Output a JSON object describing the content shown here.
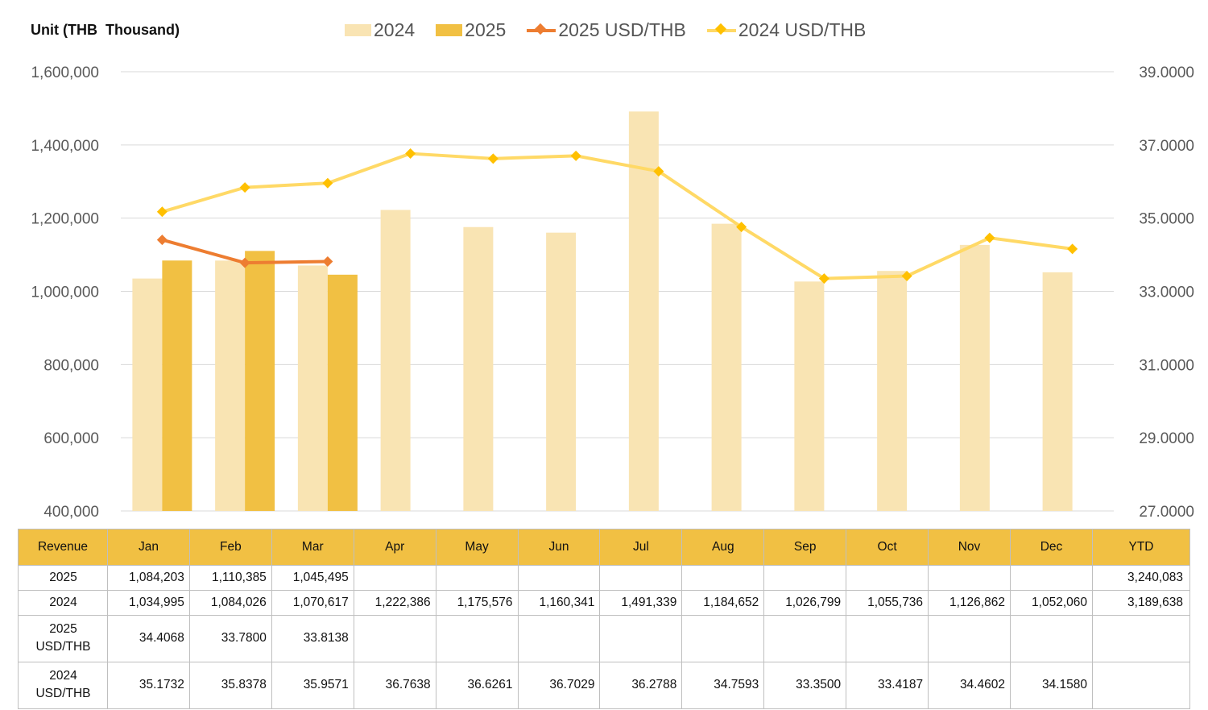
{
  "unit_label": "Unit (THB  Thousand)",
  "legend": [
    {
      "label": "2024",
      "kind": "bar",
      "color": "#f9e4b3"
    },
    {
      "label": "2025",
      "kind": "bar",
      "color": "#f1c043"
    },
    {
      "label": "2025 USD/THB",
      "kind": "line",
      "color": "#ed7d31"
    },
    {
      "label": "2024 USD/THB",
      "kind": "line",
      "color": "#ffd966",
      "marker_color": "#ffc000"
    }
  ],
  "chart_data": {
    "type": "bar",
    "title": "",
    "categories": [
      "Jan",
      "Feb",
      "Mar",
      "Apr",
      "May",
      "Jun",
      "Jul",
      "Aug",
      "Sep",
      "Oct",
      "Nov",
      "Dec"
    ],
    "series": [
      {
        "name": "2024",
        "type": "bar",
        "axis": "left",
        "color": "#f9e4b3",
        "values": [
          1034995,
          1084026,
          1070617,
          1222386,
          1175576,
          1160341,
          1491339,
          1184652,
          1026799,
          1055736,
          1126862,
          1052060
        ]
      },
      {
        "name": "2025",
        "type": "bar",
        "axis": "left",
        "color": "#f1c043",
        "values": [
          1084203,
          1110385,
          1045495,
          null,
          null,
          null,
          null,
          null,
          null,
          null,
          null,
          null
        ]
      },
      {
        "name": "2025 USD/THB",
        "type": "line",
        "axis": "right",
        "color": "#ed7d31",
        "values": [
          34.4068,
          33.78,
          33.8138,
          null,
          null,
          null,
          null,
          null,
          null,
          null,
          null,
          null
        ]
      },
      {
        "name": "2024 USD/THB",
        "type": "line",
        "axis": "right",
        "color": "#ffd966",
        "values": [
          35.1732,
          35.8378,
          35.9571,
          36.7638,
          36.6261,
          36.7029,
          36.2788,
          34.7593,
          33.35,
          33.4187,
          34.4602,
          34.158
        ]
      }
    ],
    "y_left": {
      "min": 400000,
      "max": 1600000,
      "step": 200000,
      "ticks": [
        "400,000",
        "600,000",
        "800,000",
        "1,000,000",
        "1,200,000",
        "1,400,000",
        "1,600,000"
      ]
    },
    "y_right": {
      "min": 27,
      "max": 39,
      "step": 2,
      "ticks": [
        "27.0000",
        "29.0000",
        "31.0000",
        "33.0000",
        "35.0000",
        "37.0000",
        "39.0000"
      ]
    },
    "grid": true,
    "legend_position": "top"
  },
  "table": {
    "header": [
      "Revenue",
      "Jan",
      "Feb",
      "Mar",
      "Apr",
      "May",
      "Jun",
      "Jul",
      "Aug",
      "Sep",
      "Oct",
      "Nov",
      "Dec",
      "YTD"
    ],
    "rows": [
      {
        "label": [
          "2025"
        ],
        "cells": [
          "1,084,203",
          "1,110,385",
          "1,045,495",
          "",
          "",
          "",
          "",
          "",
          "",
          "",
          "",
          "",
          "3,240,083"
        ]
      },
      {
        "label": [
          "2024"
        ],
        "cells": [
          "1,034,995",
          "1,084,026",
          "1,070,617",
          "1,222,386",
          "1,175,576",
          "1,160,341",
          "1,491,339",
          "1,184,652",
          "1,026,799",
          "1,055,736",
          "1,126,862",
          "1,052,060",
          "3,189,638"
        ]
      },
      {
        "label": [
          "2025",
          "USD/THB"
        ],
        "cells": [
          "34.4068",
          "33.7800",
          "33.8138",
          "",
          "",
          "",
          "",
          "",
          "",
          "",
          "",
          "",
          ""
        ]
      },
      {
        "label": [
          "2024",
          "USD/THB"
        ],
        "cells": [
          "35.1732",
          "35.8378",
          "35.9571",
          "36.7638",
          "36.6261",
          "36.7029",
          "36.2788",
          "34.7593",
          "33.3500",
          "33.4187",
          "34.4602",
          "34.1580",
          ""
        ]
      }
    ]
  }
}
